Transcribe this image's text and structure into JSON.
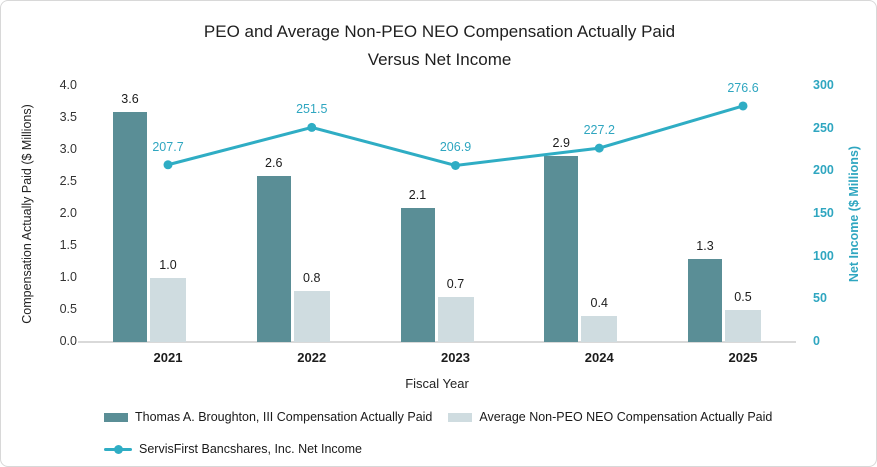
{
  "title": {
    "line1": "PEO and Average Non-PEO NEO Compensation Actually Paid",
    "line2": "Versus Net Income"
  },
  "chart_data": {
    "type": "bar+line combo",
    "categories": [
      "2021",
      "2022",
      "2023",
      "2024",
      "2025"
    ],
    "series": [
      {
        "name": "Thomas A. Broughton, III Compensation Actually Paid",
        "type": "bar",
        "axis": "left",
        "color": "#5a8e96",
        "values": [
          3.6,
          2.6,
          2.1,
          2.9,
          1.3
        ],
        "labels": [
          "3.6",
          "2.6",
          "2.1",
          "2.9",
          "1.3"
        ]
      },
      {
        "name": "Average Non-PEO NEO Compensation Actually Paid",
        "type": "bar",
        "axis": "left",
        "color": "#cfdce0",
        "values": [
          1.0,
          0.8,
          0.7,
          0.4,
          0.5
        ],
        "labels": [
          "1.0",
          "0.8",
          "0.7",
          "0.4",
          "0.5"
        ]
      },
      {
        "name": "ServisFirst Bancshares, Inc. Net Income",
        "type": "line",
        "axis": "right",
        "color": "#2fadc4",
        "values": [
          207.7,
          251.5,
          206.9,
          227.2,
          276.6
        ],
        "labels": [
          "207.7",
          "251.5",
          "206.9",
          "227.2",
          "276.6"
        ]
      }
    ],
    "xlabel": "Fiscal Year",
    "left_axis": {
      "title": "Compensation Actually Paid ($ Millions)",
      "min": 0,
      "max": 4,
      "step": 0.5,
      "ticks": [
        "0.0",
        "0.5",
        "1.0",
        "1.5",
        "2.0",
        "2.5",
        "3.0",
        "3.5",
        "4.0"
      ]
    },
    "right_axis": {
      "title": "Net Income ($ Millions)",
      "min": 0,
      "max": 300,
      "step": 50,
      "ticks": [
        "0",
        "50",
        "100",
        "150",
        "200",
        "250",
        "300"
      ],
      "text_color": "#2fa6c0"
    },
    "grid": "off",
    "legend_position": "bottom-left"
  }
}
